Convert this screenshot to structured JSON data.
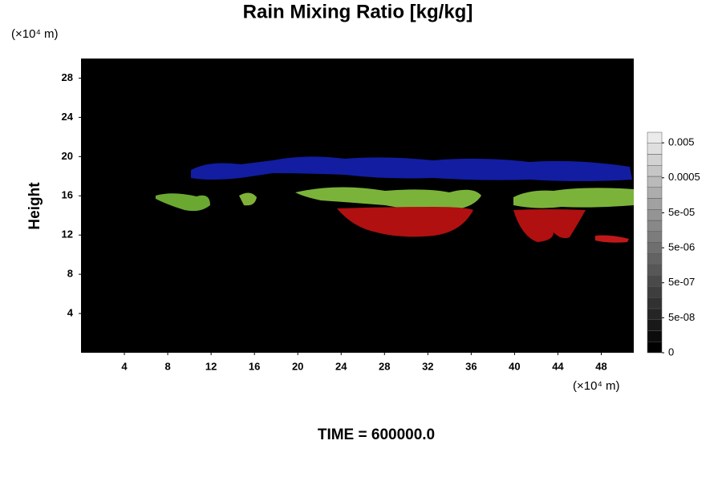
{
  "chart_data": {
    "type": "field",
    "title": "Rain Mixing Ratio [kg/kg]",
    "y_unit": "(×10⁴ m)",
    "x_unit": "(×10⁴ m)",
    "ylabel": "Height",
    "footer": "TIME = 600000.0",
    "xlim": [
      0,
      51
    ],
    "xticks": [
      4,
      8,
      12,
      16,
      20,
      24,
      28,
      32,
      36,
      40,
      44,
      48
    ],
    "ylim": [
      0,
      30
    ],
    "yticks": [
      4,
      8,
      12,
      16,
      20,
      24,
      28
    ],
    "colorbar_scale": "log",
    "clim": [
      5e-09,
      0.01
    ],
    "colorbar_ticks": [
      0.005,
      0.0005,
      {
        "value": 5e-05,
        "label": "5e-05"
      },
      {
        "value": 5e-06,
        "label": "5e-06"
      },
      {
        "value": 5e-07,
        "label": "5e-07"
      },
      {
        "value": 5e-08,
        "label": "5e-08"
      },
      0
    ]
  }
}
